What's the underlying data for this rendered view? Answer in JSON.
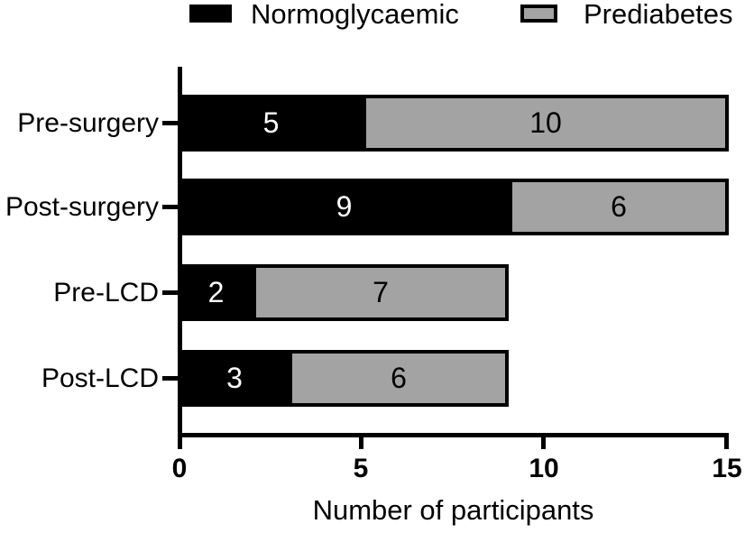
{
  "legend": {
    "items": [
      {
        "label": "Normoglycaemic",
        "color": "#000000"
      },
      {
        "label": "Prediabetes",
        "color": "#a3a3a3"
      }
    ]
  },
  "chart_data": {
    "type": "bar",
    "orientation": "horizontal",
    "stacked": true,
    "title": "",
    "xlabel": "Number of participants",
    "ylabel": "",
    "categories": [
      "Pre-surgery",
      "Post-surgery",
      "Pre-LCD",
      "Post-LCD"
    ],
    "series": [
      {
        "name": "Normoglycaemic",
        "color": "#000000",
        "values": [
          5,
          9,
          2,
          3
        ]
      },
      {
        "name": "Prediabetes",
        "color": "#a3a3a3",
        "values": [
          10,
          6,
          7,
          6
        ]
      }
    ],
    "totals": [
      15,
      15,
      9,
      9
    ],
    "xticks": [
      "0",
      "5",
      "10",
      "15"
    ],
    "xlim": [
      0,
      15
    ],
    "grid": false,
    "legend_position": "top",
    "value_labels": {
      "normoglycaemic_text_color": "#ffffff",
      "prediabetes_text_color": "#000000"
    }
  }
}
